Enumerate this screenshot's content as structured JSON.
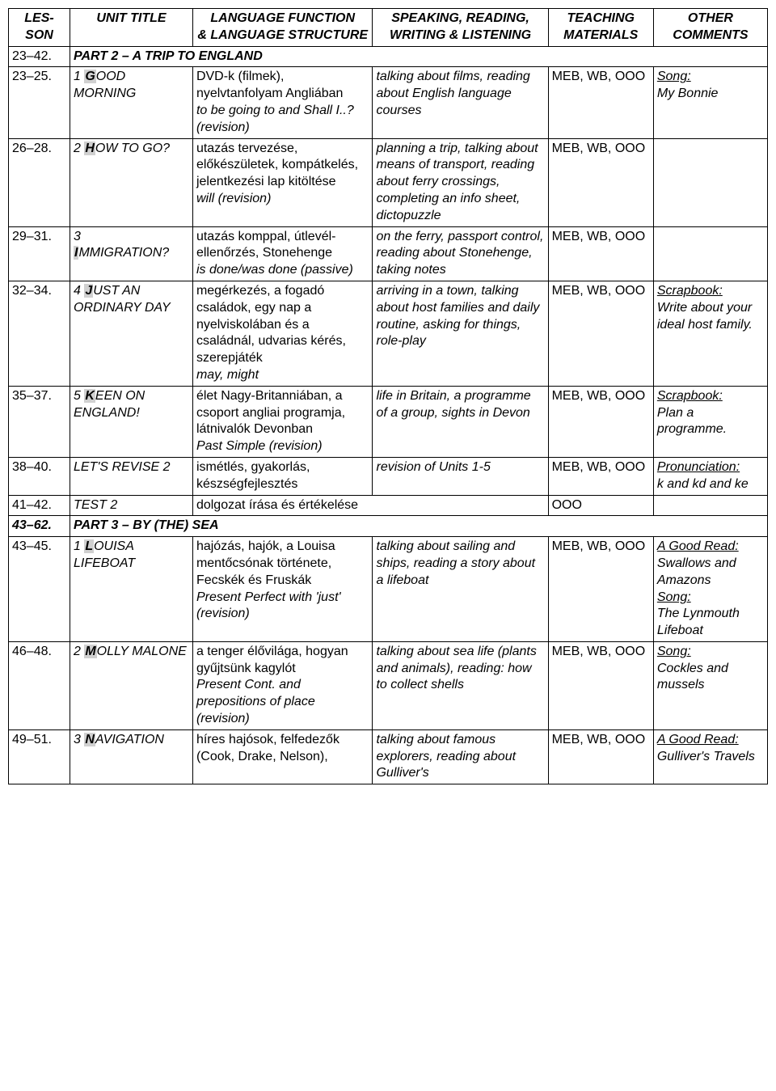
{
  "headers": {
    "lesson1": "LES-",
    "lesson2": "SON",
    "unit": "UNIT TITLE",
    "func1": "LANGUAGE FUNCTION",
    "func2": "& LANGUAGE STRUCTURE",
    "skills1": "SPEAKING, READING,",
    "skills2": "WRITING & LISTENING",
    "mat1": "TEACHING",
    "mat2": "MATERIALS",
    "other1": "OTHER",
    "other2": "COMMENTS"
  },
  "part2": {
    "lesson": "23–42.",
    "title": "PART 2 – A TRIP TO ENGLAND"
  },
  "r23": {
    "lesson": "23–25.",
    "unit_pre": "1 ",
    "unit_hl": "G",
    "unit_post": "OOD MORNING",
    "func_plain": "DVD-k (filmek), nyelvtanfolyam Angliában",
    "func_ital": "to be going to and Shall I..? (revision)",
    "skills": "talking about films, reading about English language courses",
    "mat": "MEB, WB, OOO",
    "other_u": "Song:",
    "other_rest": "My Bonnie"
  },
  "r26": {
    "lesson": "26–28.",
    "unit_pre": "2 ",
    "unit_hl": "H",
    "unit_post": "OW TO GO?",
    "func_plain": "utazás tervezése, előkészületek, kompátkelés, jelentkezési lap kitöltése",
    "func_ital": "will (revision)",
    "skills": "planning a trip, talking about means of transport, reading about ferry crossings, completing an info sheet, dictopuzzle",
    "mat": "MEB, WB, OOO"
  },
  "r29": {
    "lesson": "29–31.",
    "unit_pre": "3",
    "unit_hl": "I",
    "unit_post": "MMIGRATION?",
    "func_plain": "utazás komppal, útlevél-ellenőrzés, Stonehenge",
    "func_ital": "is done/was done (passive)",
    "skills": "on the ferry, passport control, reading about Stonehenge, taking notes",
    "mat": "MEB, WB, OOO"
  },
  "r32": {
    "lesson": "32–34.",
    "unit_pre": "4 ",
    "unit_hl": "J",
    "unit_post": "UST AN ORDINARY DAY",
    "func_plain": "megérkezés, a fogadó családok, egy nap a nyelviskolában és a családnál, udvarias kérés, szerepjáték",
    "func_ital": "may, might",
    "skills": "arriving in a town, talking about host families and daily routine, asking for things, role-play",
    "mat": "MEB, WB, OOO",
    "other_u": "Scrapbook:",
    "other_rest": "Write about your ideal host family."
  },
  "r35": {
    "lesson": "35–37.",
    "unit_pre": "5 ",
    "unit_hl": "K",
    "unit_post": "EEN ON ENGLAND!",
    "func_plain": "élet Nagy-Britanniában, a csoport angliai programja, látnivalók Devonban",
    "func_ital": "Past Simple (revision)",
    "skills": "life in Britain, a programme of a group, sights in Devon",
    "mat": "MEB, WB, OOO",
    "other_u": "Scrapbook:",
    "other_rest": "Plan a programme."
  },
  "r38": {
    "lesson": "38–40.",
    "unit": "LET'S REVISE 2",
    "func_plain": "ismétlés, gyakorlás, készségfejlesztés",
    "skills": "revision of Units 1-5",
    "mat": "MEB, WB, OOO",
    "other_u": "Pronunciation:",
    "other_rest": "k and kd and ke"
  },
  "r41": {
    "lesson": "41–42.",
    "unit": "TEST 2",
    "func": "dolgozat írása és értékelése",
    "mat": "OOO"
  },
  "part3": {
    "lesson": "43–62.",
    "title": "PART 3 – BY (THE) SEA"
  },
  "r43": {
    "lesson": "43–45.",
    "unit_pre": "1 ",
    "unit_hl": "L",
    "unit_post": "OUISA LIFEBOAT",
    "func_plain": "hajózás, hajók, a Louisa mentőcsónak története, Fecskék és Fruskák",
    "func_ital": "Present Perfect with 'just' (revision)",
    "skills": "talking about sailing and ships, reading a story about a lifeboat",
    "mat": "MEB, WB, OOO",
    "other_u1": "A Good Read:",
    "other_t1": "Swallows and Amazons",
    "other_u2": "Song:",
    "other_t2": "The Lynmouth Lifeboat"
  },
  "r46": {
    "lesson": "46–48.",
    "unit_pre": "2 ",
    "unit_hl": "M",
    "unit_post": "OLLY MALONE",
    "func_plain": "a tenger élővilága, hogyan gyűjtsünk kagylót",
    "func_ital": "Present Cont. and prepositions of place (revision)",
    "skills": "talking about sea life (plants and animals), reading: how to collect shells",
    "mat": "MEB, WB, OOO",
    "other_u": "Song:",
    "other_rest": "Cockles and mussels"
  },
  "r49": {
    "lesson": "49–51.",
    "unit_pre": "3 ",
    "unit_hl": "N",
    "unit_post": "AVIGATION",
    "func_plain": "híres hajósok, felfedezők (Cook, Drake, Nelson),",
    "skills": "talking about famous explorers, reading about Gulliver's",
    "mat": "MEB, WB, OOO",
    "other_u": "A Good Read:",
    "other_rest": "Gulliver's Travels"
  }
}
